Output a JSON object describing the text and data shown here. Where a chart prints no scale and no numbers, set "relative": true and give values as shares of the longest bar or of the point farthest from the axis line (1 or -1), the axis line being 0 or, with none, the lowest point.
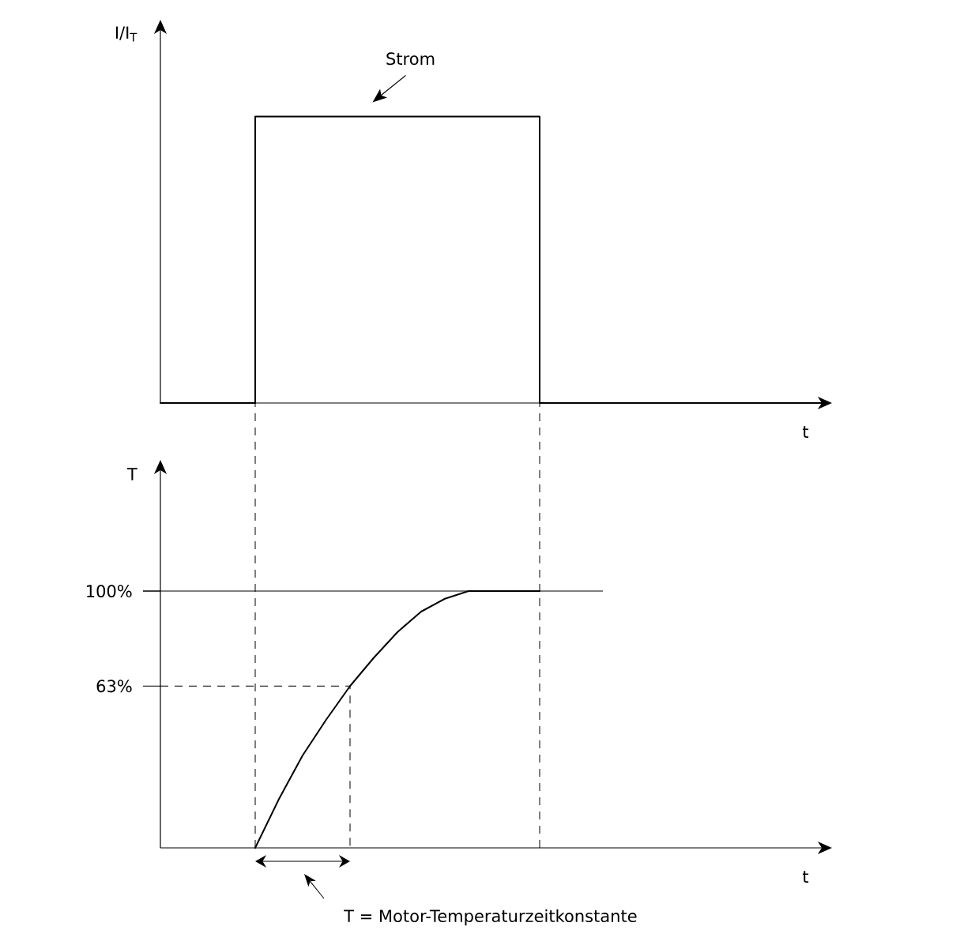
{
  "chart_data": [
    {
      "type": "step",
      "relative": true,
      "ylabel": "I/I$_{T}$",
      "xlabel": "t",
      "tick_labels": false,
      "color": "#000000",
      "categories": [
        null,
        null,
        null,
        null,
        null,
        null,
        null,
        null,
        null,
        null,
        null,
        null,
        null,
        null,
        null,
        null,
        null,
        null,
        null,
        null,
        null,
        null,
        null,
        null,
        null,
        null,
        null,
        null,
        null
      ],
      "values": [
        0,
        0,
        0,
        0,
        1,
        1,
        1,
        1,
        1,
        1,
        1,
        1,
        1,
        1,
        1,
        1,
        0,
        0,
        0,
        0,
        0,
        0,
        0,
        0,
        0,
        0,
        0,
        0,
        0
      ],
      "annotations": [
        "Strom"
      ]
    },
    {
      "type": "line",
      "ylabel": "T",
      "xlabel": "t",
      "ylim": [
        0,
        148
      ],
      "tick_labels": "y",
      "color": "#000000",
      "yticks": [
        {
          "value": 63,
          "label": "63%"
        },
        {
          "value": 100,
          "label": "100%"
        }
      ],
      "categories": [
        null,
        null,
        null,
        null,
        null,
        null,
        null,
        null,
        null,
        null,
        null,
        null,
        null,
        null,
        null,
        null,
        null,
        null,
        null,
        null,
        null,
        null,
        null,
        null,
        null,
        null,
        null,
        null,
        null
      ],
      "values": [
        null,
        null,
        null,
        null,
        0,
        19,
        36,
        50,
        63,
        74,
        84,
        92,
        97,
        100,
        100,
        100,
        100,
        null,
        null,
        null,
        null,
        null,
        null,
        null,
        null,
        null,
        null,
        null,
        null
      ],
      "ref_lines": [
        {
          "axis": "y",
          "value": 63,
          "line_style": "dashed"
        },
        {
          "axis": "y",
          "value": 100,
          "line_style": "solid"
        }
      ],
      "annotations": [
        "T = Motor-Temperaturzeitkonstante"
      ]
    }
  ]
}
